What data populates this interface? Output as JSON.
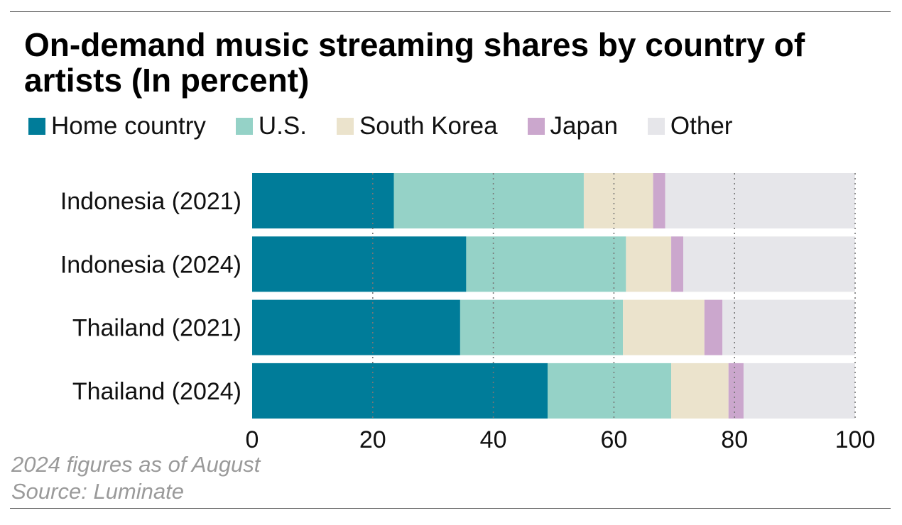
{
  "title": "On-demand music streaming shares by country of artists (In percent)",
  "legend": [
    {
      "label": "Home country",
      "color": "#007c99"
    },
    {
      "label": "U.S.",
      "color": "#95d2c7"
    },
    {
      "label": "South Korea",
      "color": "#ebe3cc"
    },
    {
      "label": "Japan",
      "color": "#cba7cd"
    },
    {
      "label": "Other",
      "color": "#e6e6ea"
    }
  ],
  "notes": {
    "line1": "2024 figures as of August",
    "line2": "Source: Luminate"
  },
  "chart_data": {
    "type": "bar",
    "orientation": "horizontal",
    "stacked": true,
    "title": "On-demand music streaming shares by country of artists (In percent)",
    "categories": [
      "Indonesia (2021)",
      "Indonesia (2024)",
      "Thailand (2021)",
      "Thailand (2024)"
    ],
    "series": [
      {
        "name": "Home country",
        "color": "#007c99",
        "values": [
          23.5,
          35.5,
          34.5,
          49
        ]
      },
      {
        "name": "U.S.",
        "color": "#95d2c7",
        "values": [
          31.5,
          26.5,
          27,
          20.5
        ]
      },
      {
        "name": "South Korea",
        "color": "#ebe3cc",
        "values": [
          11.5,
          7.5,
          13.5,
          9.5
        ]
      },
      {
        "name": "Japan",
        "color": "#cba7cd",
        "values": [
          2,
          2,
          3,
          2.5
        ]
      },
      {
        "name": "Other",
        "color": "#e6e6ea",
        "values": [
          31.5,
          28.5,
          22,
          18.5
        ]
      }
    ],
    "xlim": [
      0,
      100
    ],
    "xticks": [
      0,
      20,
      40,
      60,
      80,
      100
    ],
    "xlabel": "",
    "ylabel": "",
    "grid": "vertical-dotted"
  }
}
